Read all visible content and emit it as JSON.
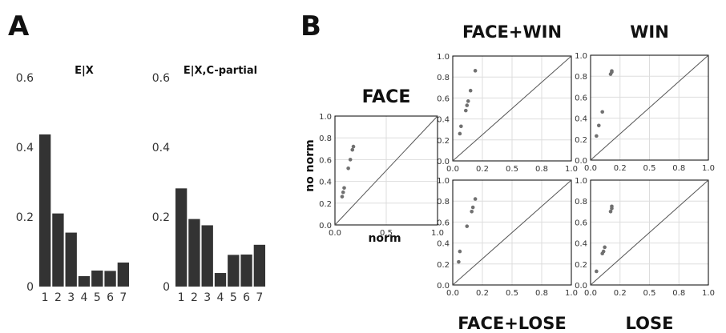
{
  "panels": {
    "a": "A",
    "b": "B"
  },
  "colors": {
    "bar": "#333333",
    "point": "#707070",
    "grid": "#dddddd",
    "axis": "#000000",
    "diagonal": "#555555"
  },
  "chart_data": [
    {
      "type": "bar",
      "title": "E|X",
      "categories": [
        "1",
        "2",
        "3",
        "4",
        "5",
        "6",
        "7"
      ],
      "values": [
        0.437,
        0.21,
        0.155,
        0.03,
        0.046,
        0.045,
        0.069
      ],
      "ylim": [
        0,
        0.6
      ],
      "yticks": [
        "0",
        "0.2",
        "0.4",
        "0.6"
      ],
      "grid": false
    },
    {
      "type": "bar",
      "title": "E|X,C-partial",
      "categories": [
        "1",
        "2",
        "3",
        "4",
        "5",
        "6",
        "7"
      ],
      "values": [
        0.282,
        0.194,
        0.176,
        0.039,
        0.091,
        0.092,
        0.12
      ],
      "ylim": [
        0,
        0.6
      ],
      "yticks": [
        "0",
        "0.2",
        "0.4",
        "0.6"
      ],
      "grid": false
    },
    {
      "type": "scatter",
      "title": "FACE",
      "xlabel": "norm",
      "ylabel": "no norm",
      "xlim": [
        0,
        1
      ],
      "ylim": [
        0,
        1
      ],
      "xticks": [
        "0.0",
        "0.5",
        "1.0"
      ],
      "yticks": [
        "0.0",
        "0.2",
        "0.4",
        "0.6",
        "0.8",
        "1.0"
      ],
      "grid": true,
      "diagonal": true,
      "points": [
        [
          0.07,
          0.26
        ],
        [
          0.08,
          0.3
        ],
        [
          0.09,
          0.34
        ],
        [
          0.13,
          0.52
        ],
        [
          0.15,
          0.6
        ],
        [
          0.17,
          0.69
        ],
        [
          0.18,
          0.72
        ]
      ]
    },
    {
      "type": "scatter",
      "title": "FACE+WIN",
      "xlim": [
        0,
        1
      ],
      "ylim": [
        0,
        1
      ],
      "xticks": [
        "0.0",
        "0.2",
        "0.5",
        "0.8",
        "1.0"
      ],
      "yticks": [
        "0.0",
        "0.2",
        "0.4",
        "0.6",
        "0.8",
        "1.0"
      ],
      "grid": true,
      "diagonal": true,
      "points": [
        [
          0.06,
          0.26
        ],
        [
          0.07,
          0.33
        ],
        [
          0.11,
          0.48
        ],
        [
          0.12,
          0.53
        ],
        [
          0.13,
          0.57
        ],
        [
          0.15,
          0.67
        ],
        [
          0.19,
          0.86
        ]
      ]
    },
    {
      "type": "scatter",
      "title": "WIN",
      "xlim": [
        0,
        1
      ],
      "ylim": [
        0,
        1
      ],
      "xticks": [
        "0.0",
        "0.2",
        "0.5",
        "0.8",
        "1.0"
      ],
      "yticks": [
        "0.0",
        "0.2",
        "0.4",
        "0.6",
        "0.8",
        "1.0"
      ],
      "grid": true,
      "diagonal": true,
      "points": [
        [
          0.05,
          0.23
        ],
        [
          0.07,
          0.33
        ],
        [
          0.1,
          0.46
        ],
        [
          0.17,
          0.82
        ],
        [
          0.18,
          0.84
        ],
        [
          0.18,
          0.85
        ]
      ]
    },
    {
      "type": "scatter",
      "title": "FACE+LOSE",
      "xlim": [
        0,
        1
      ],
      "ylim": [
        0,
        1
      ],
      "xticks": [
        "0.0",
        "0.2",
        "0.5",
        "0.8",
        "1.0"
      ],
      "yticks": [
        "0.0",
        "0.2",
        "0.4",
        "0.6",
        "0.8",
        "1.0"
      ],
      "grid": true,
      "diagonal": true,
      "points": [
        [
          0.05,
          0.22
        ],
        [
          0.06,
          0.32
        ],
        [
          0.12,
          0.56
        ],
        [
          0.16,
          0.7
        ],
        [
          0.17,
          0.74
        ],
        [
          0.19,
          0.82
        ]
      ]
    },
    {
      "type": "scatter",
      "title": "LOSE",
      "xlim": [
        0,
        1
      ],
      "ylim": [
        0,
        1
      ],
      "xticks": [
        "0.0",
        "0.2",
        "0.5",
        "0.8",
        "1.0"
      ],
      "yticks": [
        "0.0",
        "0.2",
        "0.4",
        "0.6",
        "0.8",
        "1.0"
      ],
      "grid": true,
      "diagonal": true,
      "points": [
        [
          0.05,
          0.13
        ],
        [
          0.1,
          0.3
        ],
        [
          0.11,
          0.32
        ],
        [
          0.12,
          0.36
        ],
        [
          0.17,
          0.7
        ],
        [
          0.18,
          0.73
        ],
        [
          0.18,
          0.75
        ]
      ]
    }
  ]
}
